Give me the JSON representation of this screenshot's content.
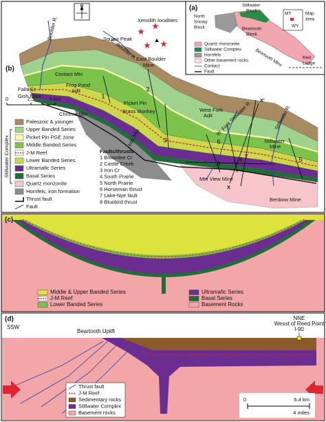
{
  "panel_b": {
    "label": "(b)",
    "north": "N",
    "scale": [
      0,
      2.5,
      "5 km"
    ],
    "places": [
      "Boulder R.",
      "E. Boulder R.",
      "Xenolith localities",
      "Squaw Peak",
      "East Boulder",
      "Mine",
      "Falls Cr",
      "Gish Mine",
      "Contact Mtn",
      "Frog Pond",
      "Adit",
      "Chrome Mtn",
      "Picket Pin",
      "Brass Monkey",
      "Iron Mtn",
      "West Fork",
      "Adit",
      "W. Fork Stillwater R.",
      "Stillwater R.",
      "Stillwater",
      "Mine",
      "Mtn View Mine",
      "Benbow Mine",
      "X",
      "X'"
    ],
    "fault_numbers": [
      1,
      2,
      3,
      4,
      5,
      6,
      7,
      8
    ],
    "legend_group": "Stillwater Complex",
    "legend": [
      "Paleozoic & younger",
      "Upper Banded Series",
      "Picket Pin PGE zone",
      "Middle Banded Series",
      "J-M Reef",
      "Lower Banded Series",
      "Ultramafic Series",
      "Basal Series",
      "Quartz monzonite",
      "Hornfels, iron formation",
      "Thrust fault",
      "Fault"
    ],
    "faults_title": "Faults/thrusts",
    "faults": [
      "1 Brownlee Cr",
      "2 Castle Creek",
      "3 Iron Cr",
      "4 South Prairie",
      "5 North Prairie",
      "6 Horseman thrust",
      "7 Lake-Nye fault",
      "8 Bluebird thrust"
    ]
  },
  "panel_a": {
    "label": "(a)",
    "places": [
      "North",
      "Snowy",
      "Block",
      "Stillwater",
      "Block",
      "Beartooth",
      "Block",
      "Beartooth Mtns",
      "Red",
      "Lodge",
      "Map",
      "area",
      "MT",
      "WY"
    ],
    "legend": [
      "Quartz monzonite",
      "Stillwater Complex",
      "Hornfels",
      "Other basement rocks",
      "Contact",
      "Fault"
    ]
  },
  "panel_c": {
    "label": "(c)",
    "legend": [
      "Middle & Upper Banded Series",
      "J-M Reef",
      "Lower Banded Series",
      "Ultramafic Series",
      "Basal Series",
      "Basement Rocks"
    ]
  },
  "panel_d": {
    "label": "(d)",
    "places": [
      "SSW",
      "Beartooth Uplift",
      "NNE",
      "Wesst of Reed Point",
      "I-90"
    ],
    "legend": [
      "Thrust fault",
      "J-M Reef",
      "Sedimentary rocks",
      "Stillwater Complex",
      "Basement rocks"
    ],
    "scale": [
      0,
      "6.4 km",
      "4 miles"
    ]
  }
}
